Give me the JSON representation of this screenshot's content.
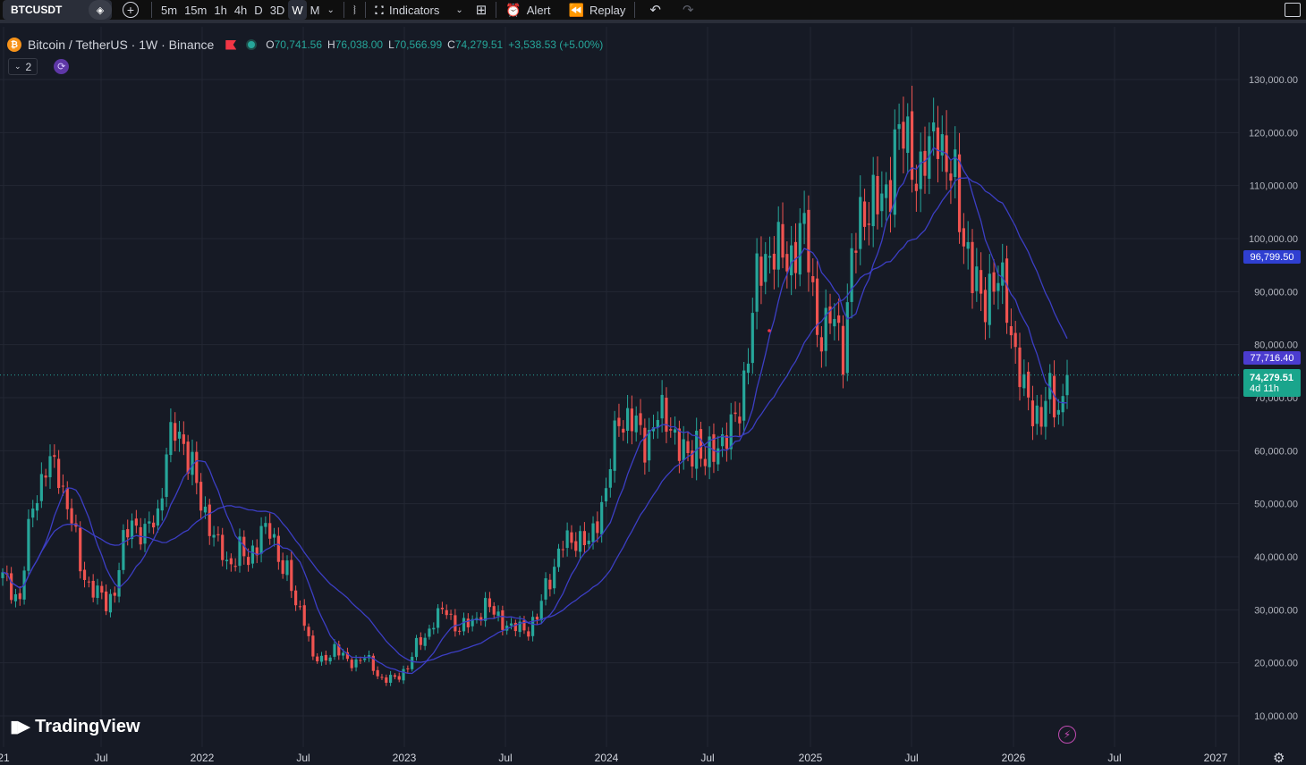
{
  "toolbar": {
    "symbol": "BTCUSDT",
    "intervals": [
      "5m",
      "15m",
      "1h",
      "4h",
      "D",
      "3D",
      "W",
      "M"
    ],
    "active_interval": "W",
    "indicators_label": "Indicators",
    "alert_label": "Alert",
    "replay_label": "Replay",
    "icons": [
      "diamond-icon",
      "add-icon",
      "chevron-down-icon",
      "candles-icon",
      "indicators-icon",
      "layout-icon",
      "alert-icon",
      "replay-icon",
      "undo-icon",
      "redo-icon",
      "fullscreen-icon"
    ]
  },
  "legend": {
    "title": "Bitcoin / TetherUS · 1W · Binance",
    "open_key": "O",
    "open": "70,741.56",
    "high_key": "H",
    "high": "76,038.00",
    "low_key": "L",
    "low": "70,566.99",
    "close_key": "C",
    "close": "74,279.51",
    "change": "+3,538.53 (+5.00%)",
    "collapse_count": "2"
  },
  "price_labels": {
    "ma_slow": "96,799.50",
    "ma_fast": "77,716.40",
    "last_price": "74,279.51",
    "countdown": "4d 11h"
  },
  "brand": "TradingView",
  "colors": {
    "up": "#26a69a",
    "down": "#ef5350",
    "ma": "#3c3ec4",
    "ma_fast_label": "#4b3ccf",
    "ma_slow_label": "#2f3fd1",
    "background": "#161a25",
    "grid": "#232733"
  },
  "chart_data": {
    "type": "candlestick",
    "title": "Bitcoin / TetherUS · 1W · Binance",
    "y_ticks": [
      "10,000.00",
      "20,000.00",
      "30,000.00",
      "40,000.00",
      "50,000.00",
      "60,000.00",
      "70,000.00",
      "80,000.00",
      "90,000.00",
      "100,000.00",
      "110,000.00",
      "120,000.00",
      "130,000.00"
    ],
    "x_ticks": [
      "21",
      "Jul",
      "2022",
      "Jul",
      "2023",
      "Jul",
      "2024",
      "Jul",
      "2025",
      "Jul",
      "2026",
      "Jul",
      "2027"
    ],
    "ylim": [
      5000,
      137000
    ],
    "price_path": [
      [
        0,
        36000
      ],
      [
        4,
        32000
      ],
      [
        7,
        50000
      ],
      [
        10,
        57000
      ],
      [
        13,
        56000
      ],
      [
        16,
        47000
      ],
      [
        18,
        38000
      ],
      [
        20,
        35000
      ],
      [
        22,
        33000
      ],
      [
        24,
        31000
      ],
      [
        26,
        34000
      ],
      [
        28,
        42000
      ],
      [
        30,
        47000
      ],
      [
        33,
        44000
      ],
      [
        36,
        48000
      ],
      [
        38,
        60000
      ],
      [
        40,
        63000
      ],
      [
        42,
        62000
      ],
      [
        44,
        57000
      ],
      [
        46,
        49000
      ],
      [
        48,
        47000
      ],
      [
        50,
        42000
      ],
      [
        52,
        38000
      ],
      [
        55,
        42000
      ],
      [
        57,
        38000
      ],
      [
        60,
        46000
      ],
      [
        62,
        44000
      ],
      [
        64,
        40000
      ],
      [
        66,
        38000
      ],
      [
        68,
        30000
      ],
      [
        70,
        29000
      ],
      [
        72,
        21000
      ],
      [
        74,
        20000
      ],
      [
        77,
        23000
      ],
      [
        80,
        20000
      ],
      [
        84,
        21000
      ],
      [
        86,
        19000
      ],
      [
        88,
        17000
      ],
      [
        91,
        16800
      ],
      [
        94,
        19500
      ],
      [
        96,
        23000
      ],
      [
        98,
        25000
      ],
      [
        100,
        28000
      ],
      [
        103,
        30000
      ],
      [
        106,
        26000
      ],
      [
        109,
        28000
      ],
      [
        112,
        30500
      ],
      [
        115,
        29000
      ],
      [
        118,
        26000
      ],
      [
        120,
        27000
      ],
      [
        122,
        26500
      ],
      [
        124,
        28000
      ],
      [
        126,
        35000
      ],
      [
        128,
        38000
      ],
      [
        130,
        42000
      ],
      [
        132,
        44000
      ],
      [
        134,
        43000
      ],
      [
        136,
        42000
      ],
      [
        138,
        48000
      ],
      [
        140,
        52000
      ],
      [
        142,
        62000
      ],
      [
        143,
        67000
      ],
      [
        145,
        66000
      ],
      [
        147,
        64000
      ],
      [
        149,
        62000
      ],
      [
        152,
        66000
      ],
      [
        155,
        66000
      ],
      [
        157,
        60000
      ],
      [
        159,
        58000
      ],
      [
        161,
        63000
      ],
      [
        163,
        57000
      ],
      [
        165,
        60000
      ],
      [
        167,
        63000
      ],
      [
        169,
        63000
      ],
      [
        171,
        68000
      ],
      [
        173,
        80000
      ],
      [
        175,
        91000
      ],
      [
        177,
        97000
      ],
      [
        179,
        99000
      ],
      [
        181,
        95000
      ],
      [
        183,
        97000
      ],
      [
        185,
        102000
      ],
      [
        187,
        96000
      ],
      [
        189,
        84000
      ],
      [
        191,
        82000
      ],
      [
        193,
        85000
      ],
      [
        195,
        80000
      ],
      [
        197,
        94000
      ],
      [
        199,
        104000
      ],
      [
        201,
        108000
      ],
      [
        203,
        105000
      ],
      [
        205,
        108000
      ],
      [
        207,
        119000
      ],
      [
        209,
        118000
      ],
      [
        211,
        116000
      ],
      [
        213,
        112000
      ],
      [
        215,
        115000
      ],
      [
        217,
        124000
      ],
      [
        219,
        112000
      ],
      [
        221,
        110000
      ],
      [
        223,
        102000
      ],
      [
        225,
        92000
      ],
      [
        227,
        88000
      ],
      [
        229,
        92000
      ],
      [
        231,
        91000
      ],
      [
        233,
        88000
      ],
      [
        235,
        79000
      ],
      [
        237,
        70000
      ],
      [
        239,
        68000
      ],
      [
        241,
        67000
      ],
      [
        243,
        70000
      ],
      [
        245,
        68000
      ],
      [
        247,
        74000
      ]
    ],
    "series": [
      {
        "name": "MA fast",
        "last_value": 77716.4
      },
      {
        "name": "MA slow",
        "last_value": 96799.5
      }
    ],
    "last_price": 74279.51,
    "grid": true
  }
}
